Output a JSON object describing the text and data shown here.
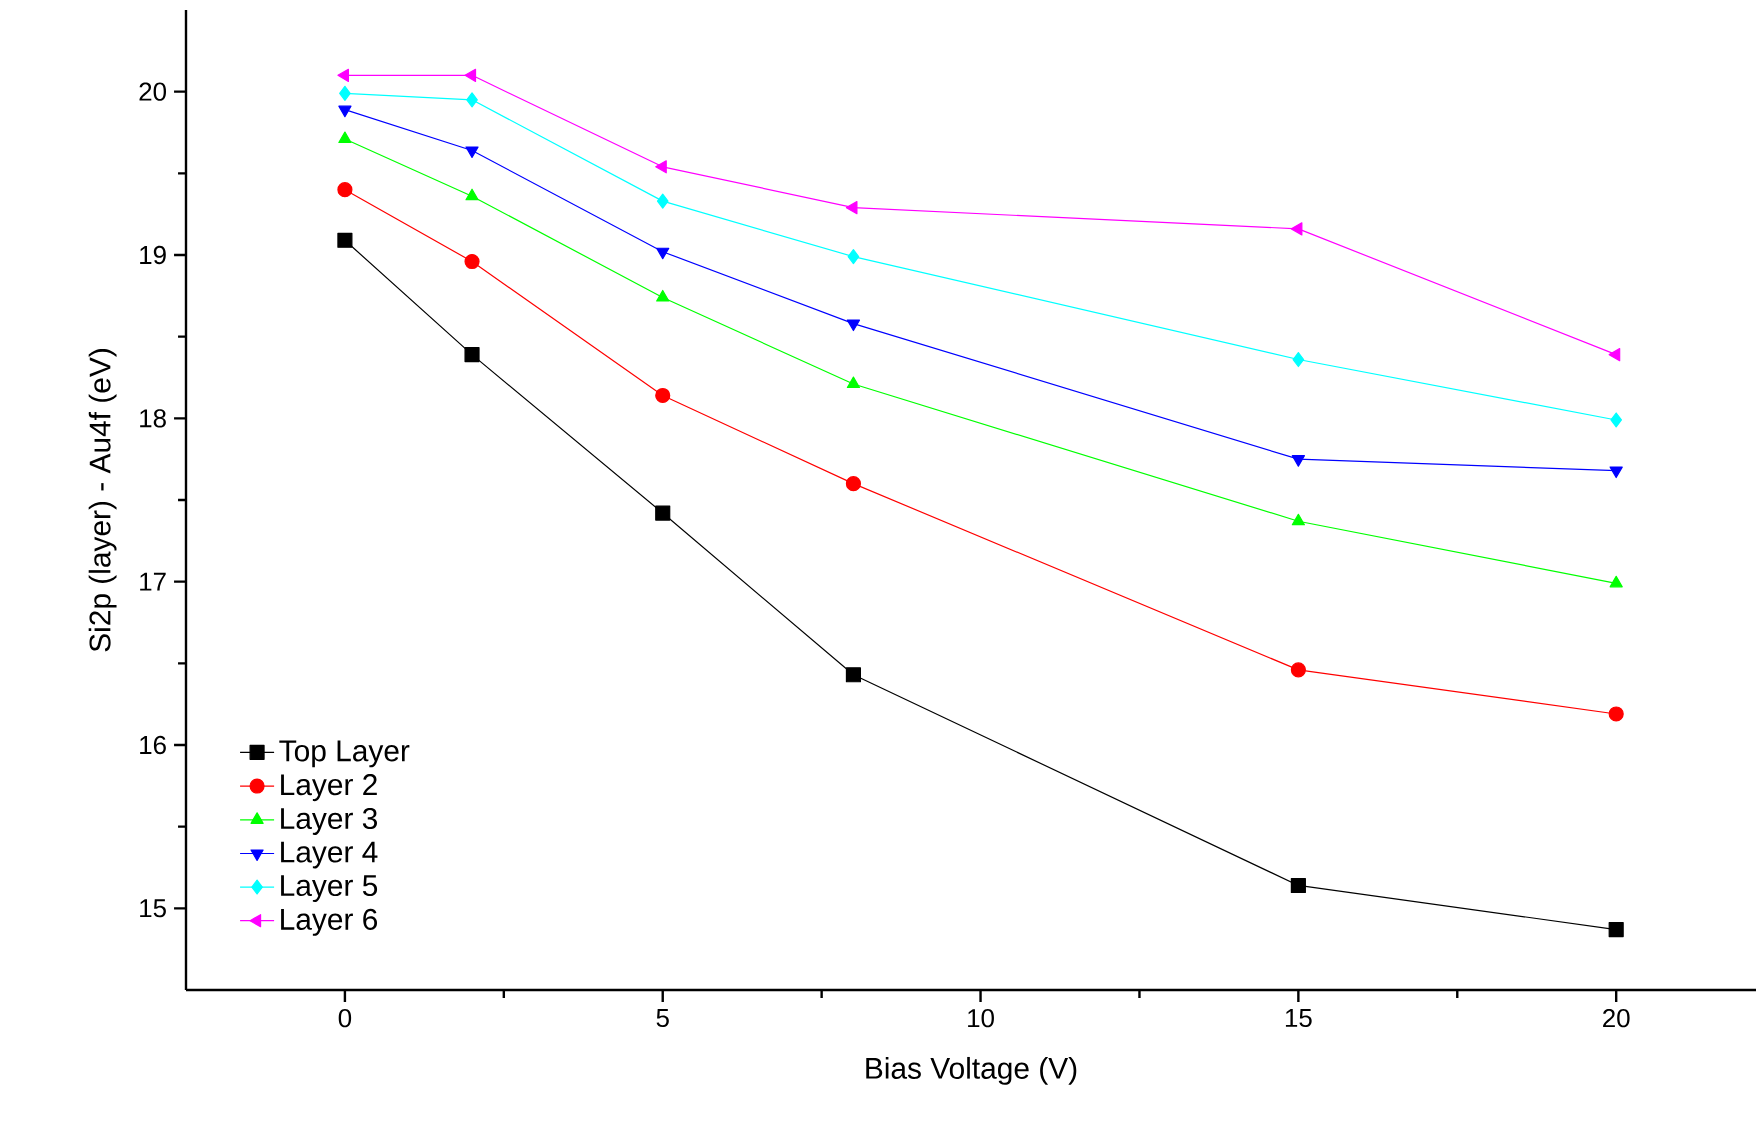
{
  "chart_data": {
    "type": "line",
    "xlabel": "Bias Voltage (V)",
    "ylabel": "Si2p (layer) - Au4f (eV)",
    "x": [
      0,
      2,
      5,
      8,
      15,
      20
    ],
    "xlim": [
      -2.5,
      22.2
    ],
    "ylim": [
      14.5,
      20.5
    ],
    "xticks": [
      0,
      5,
      10,
      15,
      20
    ],
    "yticks": [
      15,
      16,
      17,
      18,
      19,
      20
    ],
    "grid": false,
    "legend": "bottom left",
    "line_style": "solid",
    "series": [
      {
        "name": "Top Layer",
        "color": "#000000",
        "marker": "square",
        "values": [
          19.09,
          18.39,
          17.42,
          16.43,
          15.14,
          14.87
        ]
      },
      {
        "name": "Layer 2",
        "color": "#ff0000",
        "marker": "circle",
        "values": [
          19.4,
          18.96,
          18.14,
          17.6,
          16.46,
          16.19
        ]
      },
      {
        "name": "Layer 3",
        "color": "#00ff00",
        "marker": "triangle",
        "values": [
          19.71,
          19.36,
          18.74,
          18.21,
          17.37,
          16.99
        ]
      },
      {
        "name": "Layer 4",
        "color": "#0000ff",
        "marker": "triangle-down",
        "values": [
          19.89,
          19.64,
          19.02,
          18.58,
          17.75,
          17.68
        ]
      },
      {
        "name": "Layer 5",
        "color": "#00ffff",
        "marker": "diamond",
        "values": [
          19.99,
          19.95,
          19.33,
          18.99,
          18.36,
          17.99
        ]
      },
      {
        "name": "Layer 6",
        "color": "#ff00ff",
        "marker": "triangle-left",
        "values": [
          20.1,
          20.1,
          19.54,
          19.29,
          19.16,
          18.39
        ]
      }
    ]
  }
}
